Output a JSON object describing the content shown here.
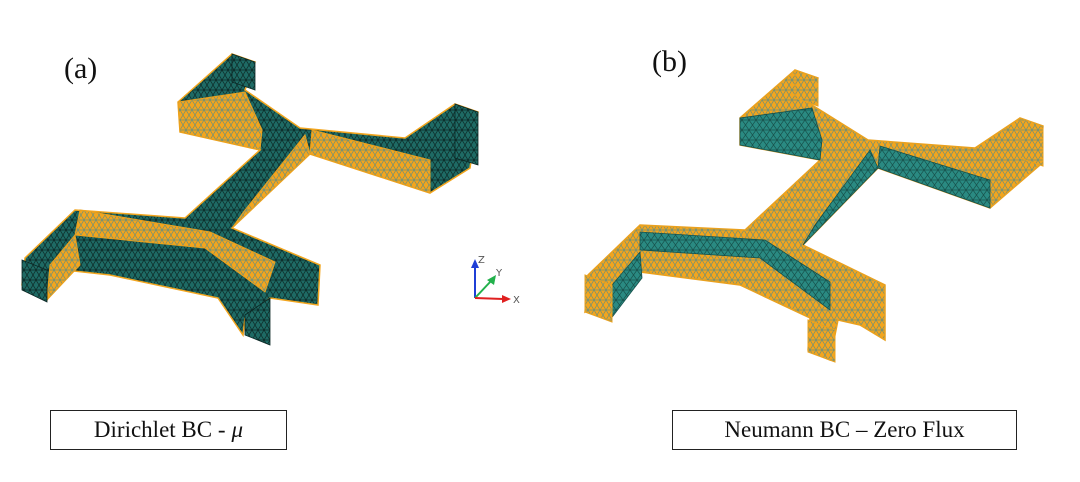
{
  "panels": [
    {
      "label": "(a)",
      "caption_text": "Dirichlet BC -",
      "caption_symbol": "μ"
    },
    {
      "label": "(b)",
      "caption_text": "Neumann BC – Zero Flux",
      "caption_symbol": ""
    }
  ],
  "triad": {
    "z": "Z",
    "y": "Y",
    "x": "X"
  },
  "colors": {
    "teal": "#1e6a64",
    "teal_dark": "#123f3b",
    "teal_light": "#2f8f86",
    "orange": "#f2a51e",
    "mesh_on_teal": "#0b2623",
    "mesh_on_orange": "#4d7d78",
    "axis_z": "#1f3fd6",
    "axis_y": "#22b14c",
    "axis_x": "#e02020"
  }
}
